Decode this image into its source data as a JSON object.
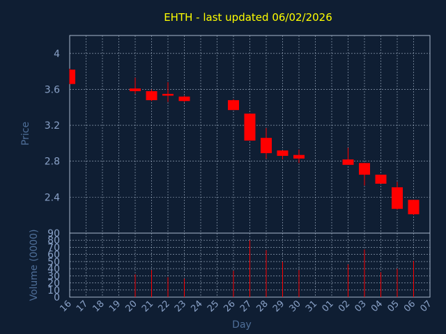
{
  "chart_data": {
    "type": "candlestick",
    "title": "EHTH - last updated 06/02/2026",
    "xlabel": "Day",
    "price_ylabel": "Price",
    "volume_ylabel": "Volume (0000)",
    "x_ticks": [
      "16",
      "17",
      "18",
      "19",
      "20",
      "21",
      "22",
      "23",
      "24",
      "25",
      "26",
      "27",
      "28",
      "29",
      "30",
      "31",
      "01",
      "02",
      "03",
      "04",
      "05",
      "06",
      "07"
    ],
    "price_yticks": [
      "2.4",
      "2.8",
      "3.2",
      "3.6",
      "4"
    ],
    "price_ylim": [
      2.0,
      4.2
    ],
    "volume_yticks": [
      "0",
      "10",
      "20",
      "30",
      "40",
      "50",
      "60",
      "70",
      "80",
      "90"
    ],
    "volume_ylim": [
      0,
      90
    ],
    "grid": true,
    "candles": [
      {
        "date": "16",
        "open": 3.82,
        "high": 3.83,
        "low": 3.66,
        "close": 3.66,
        "volume": 0
      },
      {
        "date": "20",
        "open": 3.61,
        "high": 3.73,
        "low": 3.55,
        "close": 3.58,
        "volume": 32
      },
      {
        "date": "21",
        "open": 3.58,
        "high": 3.6,
        "low": 3.47,
        "close": 3.48,
        "volume": 38
      },
      {
        "date": "22",
        "open": 3.55,
        "high": 3.68,
        "low": 3.46,
        "close": 3.53,
        "volume": 28
      },
      {
        "date": "23",
        "open": 3.52,
        "high": 3.53,
        "low": 3.46,
        "close": 3.47,
        "volume": 26
      },
      {
        "date": "26",
        "open": 3.48,
        "high": 3.49,
        "low": 3.37,
        "close": 3.37,
        "volume": 37
      },
      {
        "date": "27",
        "open": 3.33,
        "high": 3.33,
        "low": 3.03,
        "close": 3.03,
        "volume": 80
      },
      {
        "date": "28",
        "open": 3.06,
        "high": 3.17,
        "low": 2.83,
        "close": 2.89,
        "volume": 66
      },
      {
        "date": "29",
        "open": 2.92,
        "high": 2.92,
        "low": 2.82,
        "close": 2.86,
        "volume": 50
      },
      {
        "date": "30",
        "open": 2.87,
        "high": 2.93,
        "low": 2.78,
        "close": 2.83,
        "volume": 38
      },
      {
        "date": "02",
        "open": 2.82,
        "high": 2.95,
        "low": 2.76,
        "close": 2.76,
        "volume": 46
      },
      {
        "date": "03",
        "open": 2.78,
        "high": 2.78,
        "low": 2.53,
        "close": 2.65,
        "volume": 67
      },
      {
        "date": "04",
        "open": 2.65,
        "high": 2.65,
        "low": 2.55,
        "close": 2.55,
        "volume": 35
      },
      {
        "date": "05",
        "open": 2.51,
        "high": 2.57,
        "low": 2.26,
        "close": 2.27,
        "volume": 40
      },
      {
        "date": "06",
        "open": 2.37,
        "high": 2.37,
        "low": 2.2,
        "close": 2.21,
        "volume": 51
      }
    ]
  },
  "colors": {
    "background": "#0f1e33",
    "frame": "#a8b8cc",
    "grid": "#a8b8cc",
    "tick_text": "#8aa2c8",
    "title": "#ffff00",
    "label": "#4f6f99",
    "candle": "#ff0000"
  }
}
